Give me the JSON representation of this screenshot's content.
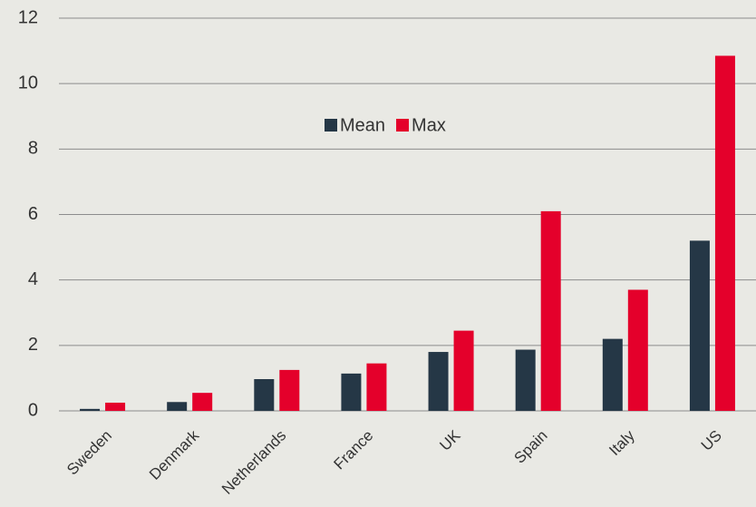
{
  "chart_data": {
    "type": "bar",
    "categories": [
      "Sweden",
      "Denmark",
      "Netherlands",
      "France",
      "UK",
      "Spain",
      "Italy",
      "US"
    ],
    "series": [
      {
        "name": "Mean",
        "color": "#253746",
        "values": [
          0.06,
          0.27,
          0.97,
          1.14,
          1.8,
          1.87,
          2.2,
          5.2
        ]
      },
      {
        "name": "Max",
        "color": "#e4002b",
        "values": [
          0.25,
          0.55,
          1.25,
          1.45,
          2.45,
          6.1,
          3.7,
          10.85
        ]
      }
    ],
    "ylim": [
      0,
      12
    ],
    "yticks": [
      0,
      2,
      4,
      6,
      8,
      10,
      12
    ],
    "grid": true,
    "legend": "top"
  }
}
